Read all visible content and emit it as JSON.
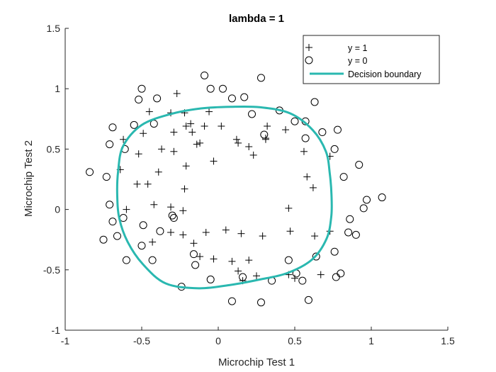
{
  "chart_data": {
    "type": "scatter",
    "title": "lambda = 1",
    "xlabel": "Microchip Test 1",
    "ylabel": "Microchip Test 2",
    "xlim": [
      -1,
      1.5
    ],
    "ylim": [
      -1,
      1.5
    ],
    "xticks": [
      -1,
      -0.5,
      0,
      0.5,
      1,
      1.5
    ],
    "yticks": [
      -1,
      -0.5,
      0,
      0.5,
      1,
      1.5
    ],
    "xtick_labels": [
      "-1",
      "-0.5",
      "0",
      "0.5",
      "1",
      "1.5"
    ],
    "ytick_labels": [
      "-1",
      "-0.5",
      "0",
      "0.5",
      "1",
      "1.5"
    ],
    "grid": false,
    "legend_position": "top-right",
    "colors": {
      "boundary": "#2ab8b0",
      "markers": "#000000",
      "axes": "#262626"
    },
    "series": [
      {
        "name": "y = 1",
        "marker": "plus",
        "points": [
          [
            -0.27,
            0.96
          ],
          [
            -0.31,
            0.8
          ],
          [
            -0.29,
            0.64
          ],
          [
            -0.22,
            0.8
          ],
          [
            -0.21,
            0.69
          ],
          [
            -0.18,
            0.71
          ],
          [
            -0.17,
            0.64
          ],
          [
            -0.09,
            0.69
          ],
          [
            -0.06,
            0.81
          ],
          [
            0.02,
            0.69
          ],
          [
            0.12,
            0.58
          ],
          [
            0.13,
            0.55
          ],
          [
            0.2,
            0.52
          ],
          [
            0.23,
            0.45
          ],
          [
            0.31,
            0.59
          ],
          [
            0.32,
            0.69
          ],
          [
            0.31,
            0.58
          ],
          [
            0.44,
            0.66
          ],
          [
            0.56,
            0.48
          ],
          [
            0.58,
            0.27
          ],
          [
            0.62,
            0.18
          ],
          [
            0.73,
            0.44
          ],
          [
            -0.45,
            0.81
          ],
          [
            -0.49,
            0.63
          ],
          [
            -0.62,
            0.58
          ],
          [
            -0.52,
            0.46
          ],
          [
            -0.37,
            0.5
          ],
          [
            -0.29,
            0.48
          ],
          [
            -0.14,
            0.54
          ],
          [
            -0.12,
            0.55
          ],
          [
            -0.03,
            0.4
          ],
          [
            -0.39,
            0.31
          ],
          [
            -0.21,
            0.36
          ],
          [
            -0.64,
            0.33
          ],
          [
            -0.53,
            0.21
          ],
          [
            -0.46,
            0.21
          ],
          [
            -0.22,
            0.17
          ],
          [
            -0.6,
            0.0
          ],
          [
            -0.42,
            0.04
          ],
          [
            -0.31,
            0.02
          ],
          [
            -0.23,
            -0.01
          ],
          [
            -0.31,
            -0.19
          ],
          [
            -0.23,
            -0.21
          ],
          [
            -0.16,
            -0.28
          ],
          [
            -0.08,
            -0.19
          ],
          [
            0.05,
            -0.17
          ],
          [
            0.15,
            -0.2
          ],
          [
            0.29,
            -0.22
          ],
          [
            0.46,
            0.01
          ],
          [
            0.47,
            -0.18
          ],
          [
            0.63,
            -0.22
          ],
          [
            0.73,
            -0.18
          ],
          [
            -0.43,
            -0.27
          ],
          [
            -0.12,
            -0.39
          ],
          [
            -0.03,
            -0.41
          ],
          [
            0.09,
            -0.43
          ],
          [
            0.2,
            -0.42
          ],
          [
            0.13,
            -0.51
          ],
          [
            0.25,
            -0.55
          ],
          [
            0.46,
            -0.54
          ],
          [
            0.5,
            -0.57
          ],
          [
            0.67,
            -0.54
          ],
          [
            0.16,
            -0.59
          ]
        ]
      },
      {
        "name": "y = 0",
        "marker": "circle",
        "points": [
          [
            -0.09,
            1.11
          ],
          [
            -0.05,
            1.0
          ],
          [
            0.03,
            1.0
          ],
          [
            0.09,
            0.92
          ],
          [
            0.17,
            0.93
          ],
          [
            0.28,
            1.09
          ],
          [
            -0.5,
            1.0
          ],
          [
            -0.52,
            0.91
          ],
          [
            -0.4,
            0.92
          ],
          [
            -0.55,
            0.7
          ],
          [
            -0.42,
            0.71
          ],
          [
            -0.69,
            0.68
          ],
          [
            -0.71,
            0.54
          ],
          [
            -0.61,
            0.5
          ],
          [
            0.4,
            0.82
          ],
          [
            0.5,
            0.73
          ],
          [
            0.63,
            0.89
          ],
          [
            0.68,
            0.64
          ],
          [
            0.57,
            0.59
          ],
          [
            0.3,
            0.62
          ],
          [
            0.22,
            0.79
          ],
          [
            0.57,
            0.73
          ],
          [
            0.78,
            0.66
          ],
          [
            0.76,
            0.5
          ],
          [
            0.82,
            0.27
          ],
          [
            0.92,
            0.37
          ],
          [
            0.97,
            0.08
          ],
          [
            0.95,
            0.01
          ],
          [
            1.07,
            0.1
          ],
          [
            0.86,
            -0.08
          ],
          [
            0.85,
            -0.19
          ],
          [
            0.9,
            -0.21
          ],
          [
            0.76,
            -0.35
          ],
          [
            0.64,
            -0.39
          ],
          [
            0.8,
            -0.53
          ],
          [
            0.77,
            -0.56
          ],
          [
            -0.84,
            0.31
          ],
          [
            -0.73,
            0.27
          ],
          [
            -0.71,
            0.04
          ],
          [
            -0.69,
            -0.1
          ],
          [
            -0.75,
            -0.25
          ],
          [
            -0.66,
            -0.22
          ],
          [
            -0.6,
            -0.42
          ],
          [
            -0.62,
            -0.07
          ],
          [
            -0.5,
            -0.3
          ],
          [
            -0.49,
            -0.13
          ],
          [
            -0.43,
            -0.42
          ],
          [
            -0.38,
            -0.18
          ],
          [
            -0.29,
            -0.07
          ],
          [
            -0.3,
            -0.05
          ],
          [
            -0.16,
            -0.37
          ],
          [
            -0.15,
            -0.46
          ],
          [
            -0.24,
            -0.64
          ],
          [
            -0.05,
            -0.58
          ],
          [
            0.09,
            -0.76
          ],
          [
            0.16,
            -0.56
          ],
          [
            0.28,
            -0.77
          ],
          [
            0.35,
            -0.59
          ],
          [
            0.46,
            -0.42
          ],
          [
            0.51,
            -0.53
          ],
          [
            0.55,
            -0.59
          ],
          [
            0.59,
            -0.75
          ]
        ]
      }
    ],
    "boundary": {
      "name": "Decision boundary",
      "center": [
        0.08,
        0.12
      ],
      "points_polar_deg_r": [
        [
          0,
          0.66
        ],
        [
          15,
          0.672
        ],
        [
          30,
          0.72
        ],
        [
          45,
          0.76
        ],
        [
          60,
          0.78
        ],
        [
          75,
          0.752
        ],
        [
          90,
          0.73
        ],
        [
          105,
          0.742
        ],
        [
          120,
          0.775
        ],
        [
          135,
          0.82
        ],
        [
          150,
          0.81
        ],
        [
          165,
          0.76
        ],
        [
          180,
          0.74
        ],
        [
          195,
          0.752
        ],
        [
          210,
          0.776
        ],
        [
          225,
          0.81
        ],
        [
          240,
          0.846
        ],
        [
          255,
          0.8
        ],
        [
          270,
          0.745
        ],
        [
          285,
          0.726
        ],
        [
          300,
          0.746
        ],
        [
          315,
          0.755
        ],
        [
          330,
          0.725
        ],
        [
          345,
          0.682
        ]
      ]
    }
  }
}
